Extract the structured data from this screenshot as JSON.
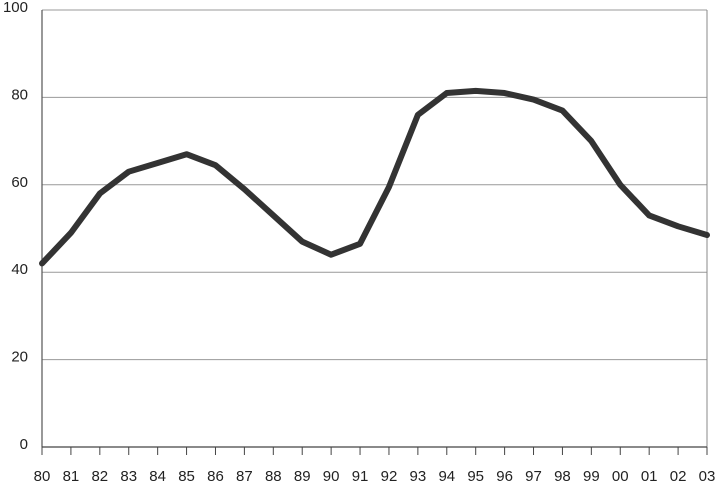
{
  "chart_data": {
    "type": "line",
    "categories": [
      "80",
      "81",
      "82",
      "83",
      "84",
      "85",
      "86",
      "87",
      "88",
      "89",
      "90",
      "91",
      "92",
      "93",
      "94",
      "95",
      "96",
      "97",
      "98",
      "99",
      "00",
      "01",
      "02",
      "03"
    ],
    "values": [
      42,
      49,
      58,
      63,
      65,
      67,
      64.5,
      59,
      53,
      47,
      44,
      46.5,
      59.5,
      76,
      81,
      81.5,
      81,
      79.5,
      77,
      70,
      60,
      53,
      50.5,
      48.5
    ],
    "color": "#333333",
    "ylim": [
      0,
      100
    ],
    "yticks": [
      0,
      20,
      40,
      60,
      80,
      100
    ],
    "grid": true
  }
}
